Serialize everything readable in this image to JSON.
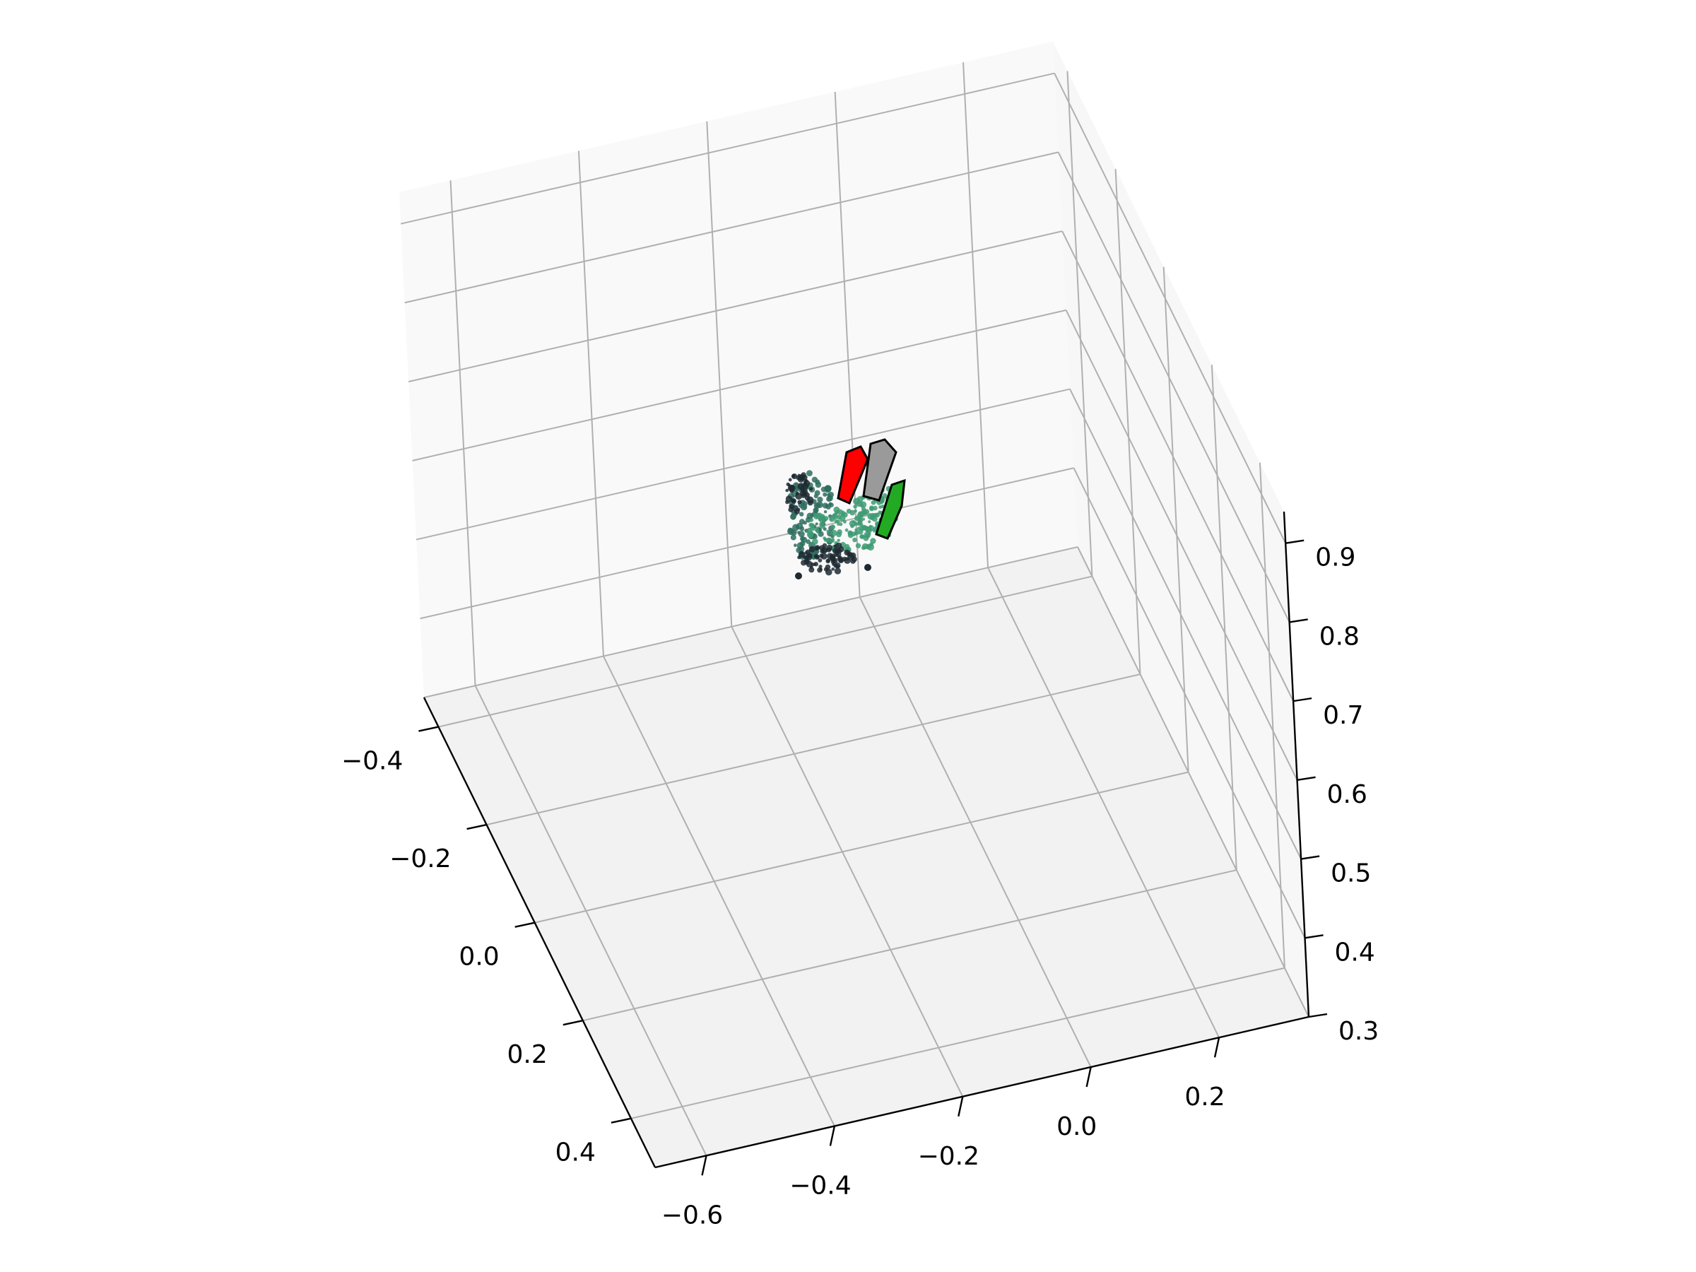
{
  "chart_data": {
    "type": "scatter",
    "projection": "3d",
    "title": "",
    "xlabel": "",
    "ylabel": "",
    "zlabel": "",
    "grid": true,
    "legend": "none",
    "colors": {
      "pane_floor": "#f2f2f2",
      "pane_left": "#f7f7f7",
      "pane_back": "#f9f9f9",
      "grid": "#b0b0b0",
      "axis": "#000000",
      "cloud_dark": "#1e2a33",
      "cloud_teal": "#2f6f5f",
      "cloud_green": "#3e9b73",
      "gripper_red": "#ff0000",
      "gripper_gray": "#9a9a9a",
      "gripper_green": "#22aa22"
    },
    "axes": {
      "x": {
        "ticks": [
          -0.4,
          -0.2,
          0.0,
          0.2,
          0.4
        ],
        "tick_labels": [
          "−0.4",
          "−0.2",
          "0.0",
          "0.2",
          "0.4"
        ]
      },
      "y": {
        "ticks": [
          -0.6,
          -0.4,
          -0.2,
          0.0,
          0.2
        ],
        "tick_labels": [
          "−0.6",
          "−0.4",
          "−0.2",
          "0.0",
          "0.2"
        ]
      },
      "z": {
        "ticks": [
          0.3,
          0.4,
          0.5,
          0.6,
          0.7,
          0.8,
          0.9
        ],
        "tick_labels": [
          "0.3",
          "0.4",
          "0.5",
          "0.6",
          "0.7",
          "0.8",
          "0.9"
        ]
      }
    },
    "objects": [
      {
        "name": "",
        "kind": "point-cloud",
        "description_color": "dark/teal/green"
      },
      {
        "name": "",
        "kind": "gripper-box",
        "color": "red"
      },
      {
        "name": "",
        "kind": "gripper-box",
        "color": "gray"
      },
      {
        "name": "",
        "kind": "gripper-box",
        "color": "green"
      }
    ]
  }
}
